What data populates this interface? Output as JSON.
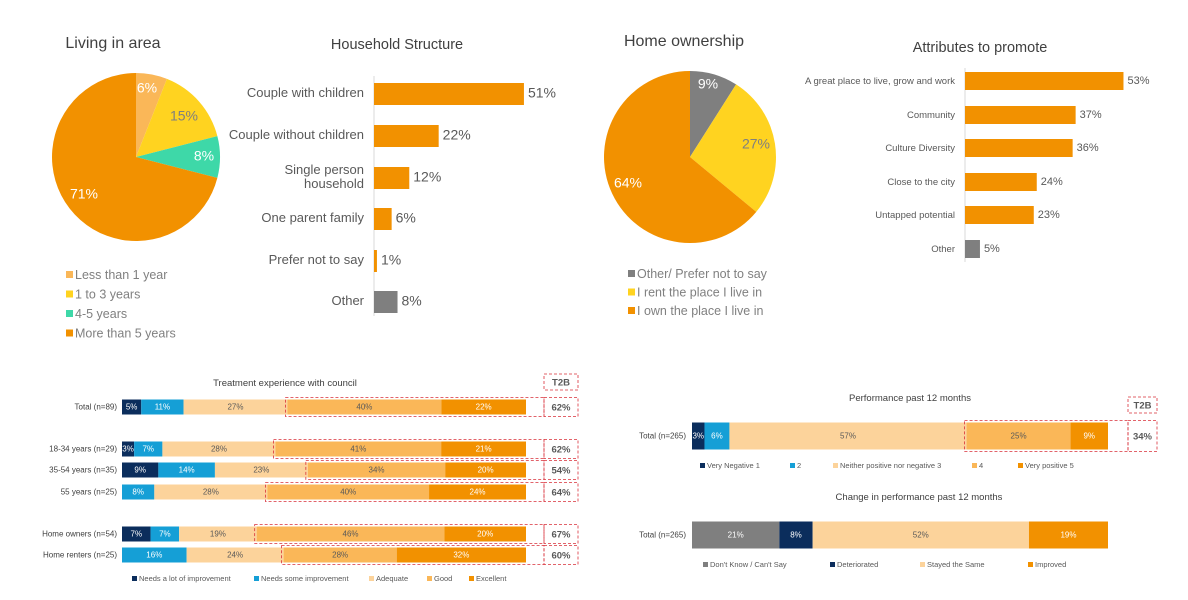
{
  "colors": {
    "orange": "#f29100",
    "light_orange": "#fab758",
    "yellow": "#ffd320",
    "teal": "#3ed8a8",
    "grey": "#7f7f7f",
    "navy": "#0b2d5c",
    "blue": "#159fd6",
    "peach": "#fcd39b",
    "t2b_border": "#d9303a"
  },
  "chart_data": [
    {
      "id": "living",
      "type": "pie",
      "title": "Living in area",
      "slices": [
        {
          "label": "Less than 1 year",
          "value": 6,
          "text": "6%",
          "color": "#fab758"
        },
        {
          "label": "1 to 3 years",
          "value": 15,
          "text": "15%",
          "color": "#ffd320"
        },
        {
          "label": "4-5 years",
          "value": 8,
          "text": "8%",
          "color": "#3ed8a8"
        },
        {
          "label": "More than 5 years",
          "value": 71,
          "text": "71%",
          "color": "#f29100"
        }
      ]
    },
    {
      "id": "household",
      "type": "bar",
      "orientation": "horizontal",
      "title": "Household Structure",
      "categories": [
        "Couple with children",
        "Couple without children",
        "Single person household",
        "One parent family",
        "Prefer not to say",
        "Other"
      ],
      "values": [
        51,
        22,
        12,
        6,
        1,
        8
      ],
      "labels": [
        "51%",
        "22%",
        "12%",
        "6%",
        "1%",
        "8%"
      ],
      "colors": [
        "#f29100",
        "#f29100",
        "#f29100",
        "#f29100",
        "#f29100",
        "#7f7f7f"
      ]
    },
    {
      "id": "home",
      "type": "pie",
      "title": "Home ownership",
      "slices": [
        {
          "label": "Other/ Prefer not to say",
          "value": 9,
          "text": "9%",
          "color": "#7f7f7f"
        },
        {
          "label": "I rent the place I live in",
          "value": 27,
          "text": "27%",
          "color": "#ffd320"
        },
        {
          "label": "I own the place I live in",
          "value": 64,
          "text": "64%",
          "color": "#f29100"
        }
      ]
    },
    {
      "id": "attributes",
      "type": "bar",
      "orientation": "horizontal",
      "title": "Attributes to promote",
      "categories": [
        "A great place to live, grow and work",
        "Community",
        "Culture Diversity",
        "Close to the city",
        "Untapped potential",
        "Other"
      ],
      "values": [
        53,
        37,
        36,
        24,
        23,
        5
      ],
      "labels": [
        "53%",
        "37%",
        "36%",
        "24%",
        "23%",
        "5%"
      ],
      "colors": [
        "#f29100",
        "#f29100",
        "#f29100",
        "#f29100",
        "#f29100",
        "#7f7f7f"
      ]
    },
    {
      "id": "treatment",
      "type": "bar",
      "orientation": "horizontal",
      "stacked": true,
      "title": "Treatment experience with council",
      "t2b_header": "T2B",
      "categories": [
        "Total (n=89)",
        "18-34 years (n=29)",
        "35-54 years (n=35)",
        "55 years (n=25)",
        "Home owners (n=54)",
        "Home renters (n=25)"
      ],
      "series": [
        {
          "name": "Needs a lot of improvement",
          "color": "#0b2d5c",
          "values": [
            5,
            3,
            9,
            0,
            7,
            0
          ],
          "labels": [
            "5%",
            "3%",
            "9%",
            "",
            "7%",
            ""
          ]
        },
        {
          "name": "Needs some improvement",
          "color": "#159fd6",
          "values": [
            11,
            7,
            14,
            8,
            7,
            16
          ],
          "labels": [
            "11%",
            "7%",
            "14%",
            "8%",
            "7%",
            "16%"
          ]
        },
        {
          "name": "Adequate",
          "color": "#fcd39b",
          "values": [
            27,
            28,
            23,
            28,
            19,
            24
          ],
          "labels": [
            "27%",
            "28%",
            "23%",
            "28%",
            "19%",
            "24%"
          ]
        },
        {
          "name": "Good",
          "color": "#fab758",
          "values": [
            40,
            41,
            34,
            40,
            46,
            28
          ],
          "labels": [
            "40%",
            "41%",
            "34%",
            "40%",
            "46%",
            "28%"
          ]
        },
        {
          "name": "Excellent",
          "color": "#f29100",
          "values": [
            22,
            21,
            20,
            24,
            20,
            32
          ],
          "labels": [
            "22%",
            "21%",
            "20%",
            "24%",
            "20%",
            "32%"
          ]
        }
      ],
      "t2b": [
        "62%",
        "62%",
        "54%",
        "64%",
        "67%",
        "60%"
      ]
    },
    {
      "id": "performance",
      "type": "bar",
      "orientation": "horizontal",
      "stacked": true,
      "title": "Performance past 12 months",
      "t2b_header": "T2B",
      "categories": [
        "Total (n=265)"
      ],
      "series": [
        {
          "name": "Very Negative 1",
          "color": "#0b2d5c",
          "values": [
            3
          ],
          "labels": [
            "3%"
          ]
        },
        {
          "name": "2",
          "color": "#159fd6",
          "values": [
            6
          ],
          "labels": [
            "6%"
          ]
        },
        {
          "name": "Neither positive nor negative 3",
          "color": "#fcd39b",
          "values": [
            57
          ],
          "labels": [
            "57%"
          ]
        },
        {
          "name": "4",
          "color": "#fab758",
          "values": [
            25
          ],
          "labels": [
            "25%"
          ]
        },
        {
          "name": "Very positive 5",
          "color": "#f29100",
          "values": [
            9
          ],
          "labels": [
            "9%"
          ]
        }
      ],
      "t2b": [
        "34%"
      ]
    },
    {
      "id": "change",
      "type": "bar",
      "orientation": "horizontal",
      "stacked": true,
      "title": "Change in performance past 12 months",
      "categories": [
        "Total (n=265)"
      ],
      "series": [
        {
          "name": "Don't Know / Can't Say",
          "color": "#7f7f7f",
          "values": [
            21
          ],
          "labels": [
            "21%"
          ]
        },
        {
          "name": "Deteriorated",
          "color": "#0b2d5c",
          "values": [
            8
          ],
          "labels": [
            "8%"
          ]
        },
        {
          "name": "Stayed the Same",
          "color": "#fcd39b",
          "values": [
            52
          ],
          "labels": [
            "52%"
          ]
        },
        {
          "name": "Improved",
          "color": "#f29100",
          "values": [
            19
          ],
          "labels": [
            "19%"
          ]
        }
      ]
    }
  ]
}
